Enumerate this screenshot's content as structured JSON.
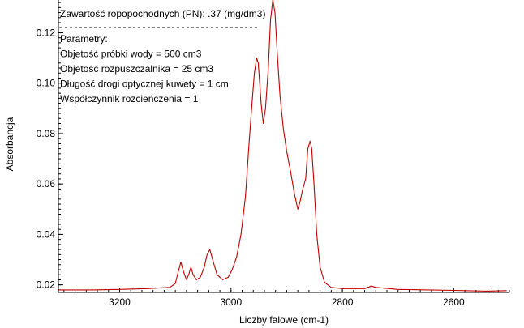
{
  "chart_data": {
    "type": "line",
    "xlabel": "Liczby falowe (cm-1)",
    "ylabel": "Absorbancja",
    "xlim": [
      3310,
      2500
    ],
    "ylim": [
      0.017,
      0.133
    ],
    "x_ticks": [
      "3200",
      "3000",
      "2800",
      "2600"
    ],
    "y_ticks": [
      "0.02",
      "0.04",
      "0.06",
      "0.08",
      "0.10",
      "0.12"
    ],
    "grid": false,
    "line_color": "#c00000",
    "annotation": {
      "header": "Zawartość ropopochodnych (PN):  .37 (mg/dm3)",
      "lines": [
        "Parametry:",
        "Objetość próbki wody =  500 cm3",
        "Objetość rozpuszczalnika = 25 cm3",
        "Długość drogi optycznej kuwety =  1 cm",
        "Współczynnik rozcieńczenia =  1"
      ]
    },
    "series": [
      {
        "values": [
          [
            3310,
            0.018
          ],
          [
            3250,
            0.018
          ],
          [
            3200,
            0.0182
          ],
          [
            3150,
            0.0185
          ],
          [
            3110,
            0.019
          ],
          [
            3100,
            0.0205
          ],
          [
            3095,
            0.025
          ],
          [
            3090,
            0.029
          ],
          [
            3085,
            0.025
          ],
          [
            3080,
            0.022
          ],
          [
            3076,
            0.024
          ],
          [
            3072,
            0.027
          ],
          [
            3068,
            0.024
          ],
          [
            3062,
            0.022
          ],
          [
            3055,
            0.023
          ],
          [
            3048,
            0.027
          ],
          [
            3043,
            0.032
          ],
          [
            3038,
            0.034
          ],
          [
            3033,
            0.03
          ],
          [
            3025,
            0.024
          ],
          [
            3015,
            0.022
          ],
          [
            3005,
            0.023
          ],
          [
            2998,
            0.026
          ],
          [
            2990,
            0.031
          ],
          [
            2982,
            0.04
          ],
          [
            2974,
            0.055
          ],
          [
            2968,
            0.075
          ],
          [
            2963,
            0.09
          ],
          [
            2958,
            0.104
          ],
          [
            2954,
            0.11
          ],
          [
            2951,
            0.108
          ],
          [
            2946,
            0.092
          ],
          [
            2942,
            0.084
          ],
          [
            2938,
            0.09
          ],
          [
            2933,
            0.106
          ],
          [
            2929,
            0.125
          ],
          [
            2925,
            0.133
          ],
          [
            2921,
            0.128
          ],
          [
            2917,
            0.112
          ],
          [
            2912,
            0.095
          ],
          [
            2906,
            0.082
          ],
          [
            2900,
            0.073
          ],
          [
            2893,
            0.065
          ],
          [
            2886,
            0.056
          ],
          [
            2880,
            0.05
          ],
          [
            2876,
            0.053
          ],
          [
            2871,
            0.058
          ],
          [
            2866,
            0.062
          ],
          [
            2862,
            0.074
          ],
          [
            2858,
            0.077
          ],
          [
            2855,
            0.074
          ],
          [
            2851,
            0.06
          ],
          [
            2846,
            0.04
          ],
          [
            2840,
            0.027
          ],
          [
            2832,
            0.021
          ],
          [
            2820,
            0.019
          ],
          [
            2800,
            0.0185
          ],
          [
            2760,
            0.0185
          ],
          [
            2748,
            0.0195
          ],
          [
            2740,
            0.019
          ],
          [
            2700,
            0.0182
          ],
          [
            2600,
            0.0178
          ],
          [
            2540,
            0.0175
          ],
          [
            2505,
            0.0177
          ]
        ]
      }
    ]
  }
}
